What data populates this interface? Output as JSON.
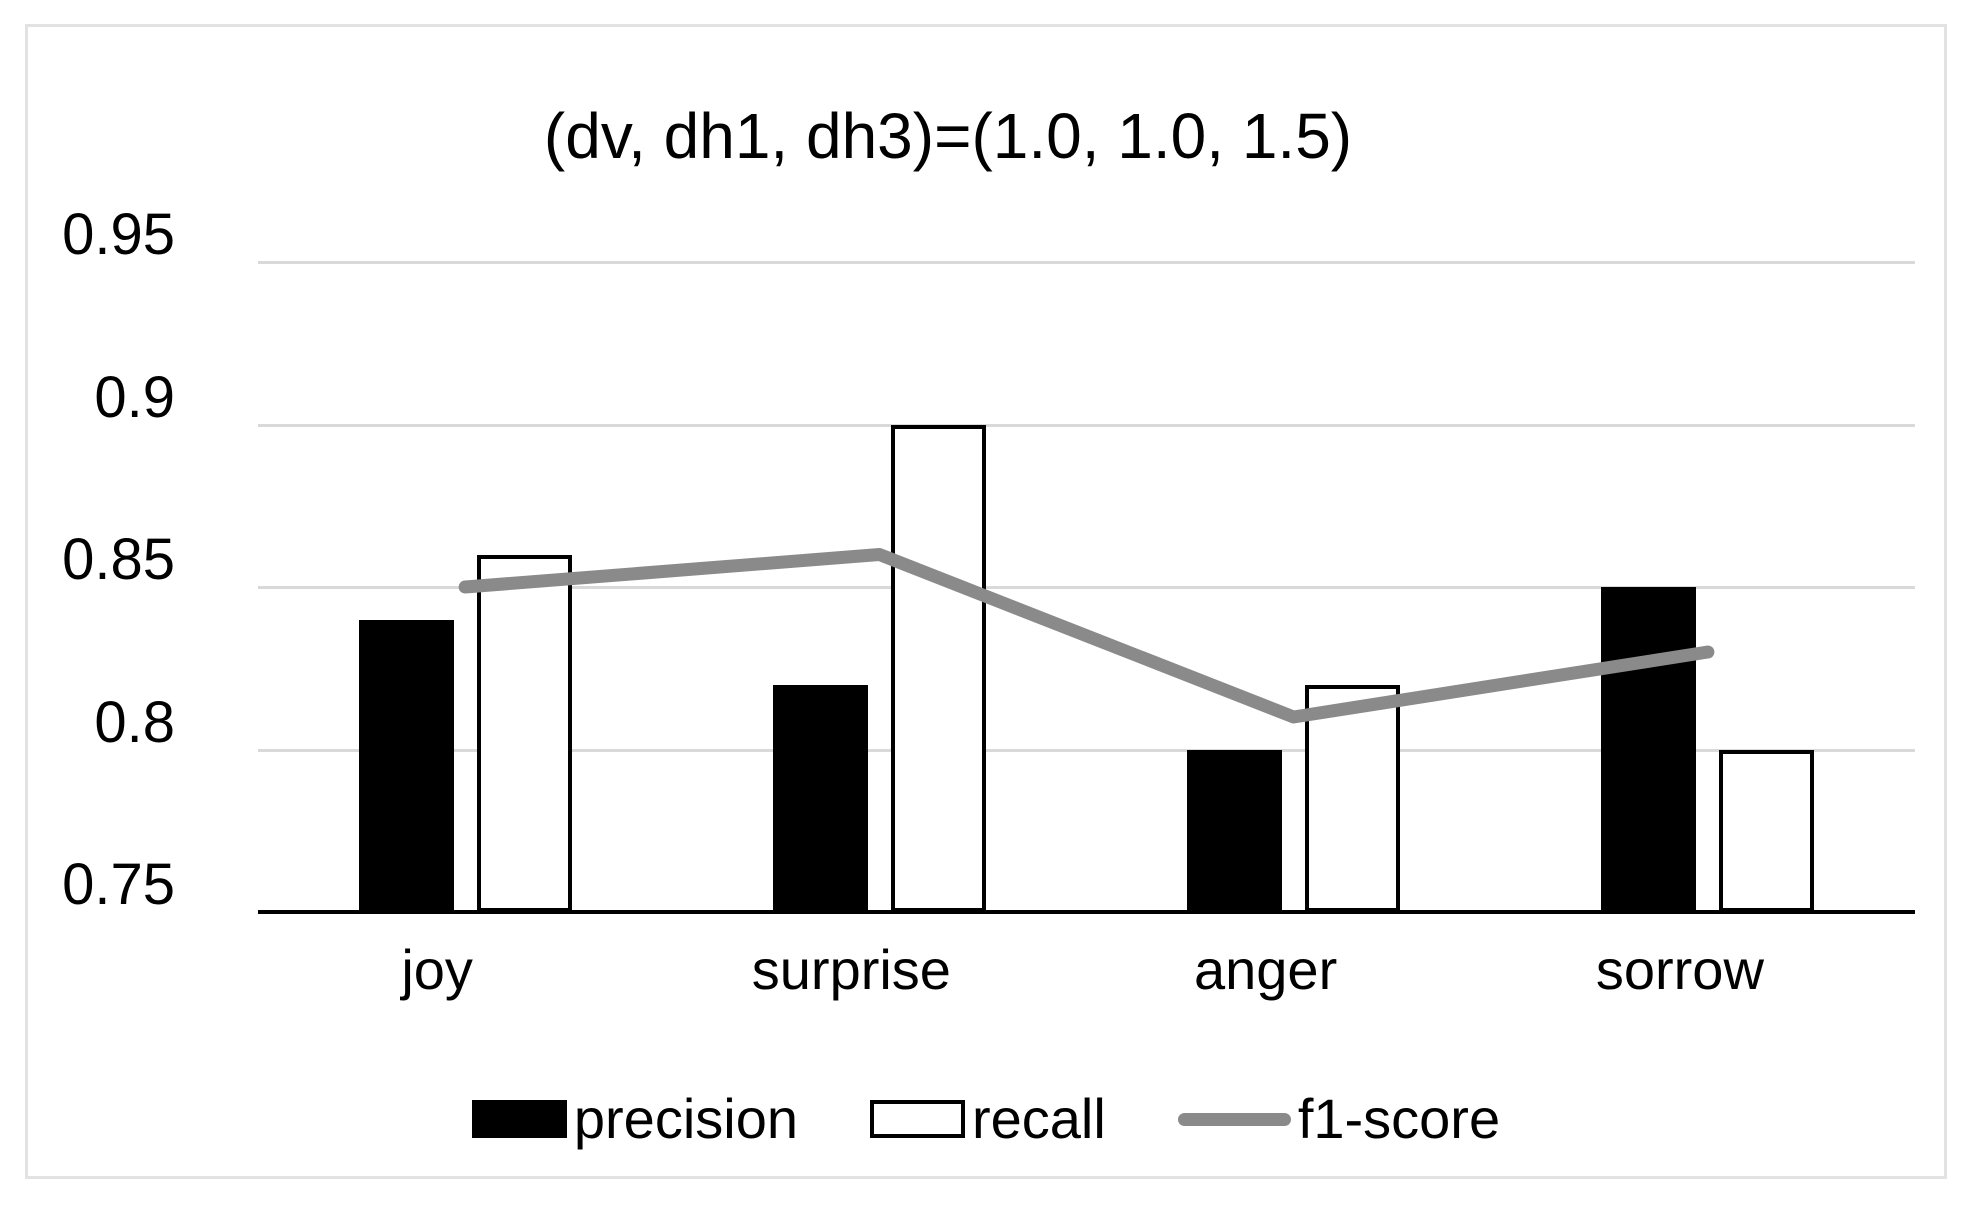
{
  "chart_data": {
    "type": "bar",
    "subtype": "grouped-bars-with-line-overlay",
    "title": "(dv, dh1, dh3)=(1.0, 1.0, 1.5)",
    "categories": [
      "joy",
      "surprise",
      "anger",
      "sorrow"
    ],
    "series": [
      {
        "name": "precision",
        "type": "bar",
        "color": "#000000",
        "values": [
          0.84,
          0.82,
          0.8,
          0.85
        ]
      },
      {
        "name": "recall",
        "type": "bar",
        "color": "#ffffff",
        "border_color": "#000000",
        "values": [
          0.86,
          0.9,
          0.82,
          0.8
        ]
      },
      {
        "name": "f1-score",
        "type": "line",
        "color": "#8a8a8a",
        "values": [
          0.85,
          0.86,
          0.81,
          0.83
        ]
      }
    ],
    "xlabel": "",
    "ylabel": "",
    "ylim": [
      0.75,
      0.95
    ],
    "ytick_values": [
      0.95,
      0.9,
      0.85,
      0.8,
      0.75
    ],
    "ytick_labels": [
      "0.95",
      "0.9",
      "0.85",
      "0.8",
      "0.75"
    ],
    "grid": true,
    "legend_position": "bottom",
    "colors": {
      "gridline": "#d9d9d9",
      "axis": "#000000",
      "frame_border": "#e2e2e2",
      "background": "#ffffff",
      "text": "#000000"
    }
  }
}
